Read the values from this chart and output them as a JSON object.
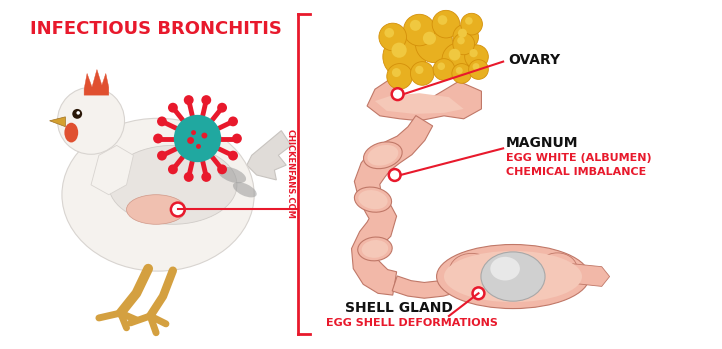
{
  "bg_color": "#ffffff",
  "title": "INFECTIOUS BRONCHITIS",
  "title_color": "#e8192c",
  "title_fontsize": 13,
  "watermark": "CHICKENFANS.COM",
  "watermark_color": "#e8192c",
  "watermark_fontsize": 6,
  "label_ovary": "OVARY",
  "label_magnum": "MAGNUM",
  "label_magnum_sub1": "EGG WHITE (ALBUMEN)",
  "label_magnum_sub2": "CHEMICAL IMBALANCE",
  "label_shell": "SHELL GLAND",
  "label_shell_sub": "EGG SHELL DEFORMATIONS",
  "label_color_black": "#111111",
  "label_color_red": "#e8192c",
  "label_fontsize_main": 10,
  "label_fontsize_sub": 8,
  "divider_color": "#e8192c",
  "pointer_color": "#e8192c",
  "flesh_color": "#f2b8a8",
  "flesh_outline": "#c07868",
  "flesh_inner": "#f5c8b8",
  "yolk_color_outer": "#d4900a",
  "yolk_color_inner": "#e8b020",
  "yolk_color_light": "#f0c840",
  "egg_color": "#d8d8d8",
  "egg_highlight": "#ececec",
  "chicken_body": "#f5f2ee",
  "chicken_outline": "#d8d4d0",
  "chicken_wing": "#e8e4e0",
  "chicken_leg": "#d4a040",
  "virus_center": "#20a8a0",
  "virus_spike": "#e8192c",
  "comb_color": "#e05030",
  "wattle_color": "#e05030"
}
